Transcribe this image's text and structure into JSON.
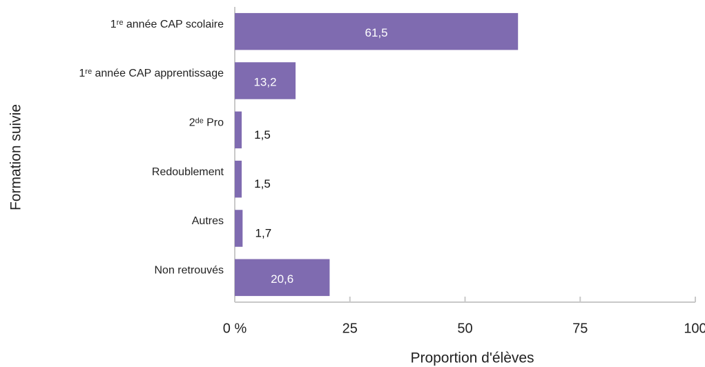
{
  "chart_data": {
    "type": "bar",
    "orientation": "horizontal",
    "categories": [
      "1ʳᵉ année CAP scolaire",
      "1ʳᵉ année CAP apprentissage",
      "2ᵈᵉ Pro",
      "Redoublement",
      "Autres",
      "Non retrouvés"
    ],
    "values": [
      61.5,
      13.2,
      1.5,
      1.5,
      1.7,
      20.6
    ],
    "value_labels": [
      "61,5",
      "13,2",
      "1,5",
      "1,5",
      "1,7",
      "20,6"
    ],
    "color": "#7f6bb0",
    "xlim": [
      0,
      100
    ],
    "xticks": [
      {
        "value": 0,
        "label": "0 %"
      },
      25,
      50,
      75,
      100
    ],
    "xlabel": "Proportion d'élèves",
    "ylabel": "Formation suivie"
  }
}
